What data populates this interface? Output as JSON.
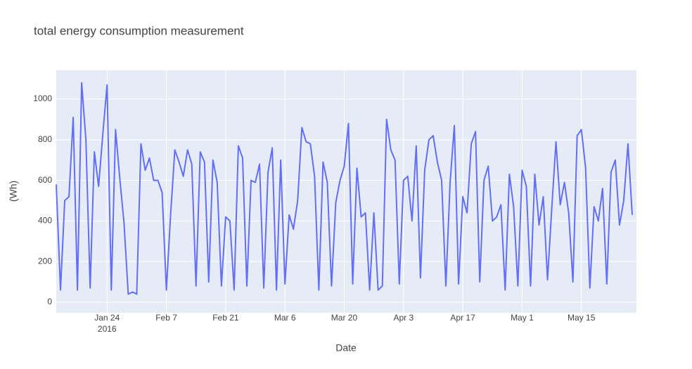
{
  "chart_data": {
    "type": "line",
    "title": "total energy consumption measurement",
    "xlabel": "Date",
    "ylabel": "(Wh)",
    "x_year_label": "2016",
    "x": [
      "2016-01-12",
      "2016-01-13",
      "2016-01-14",
      "2016-01-15",
      "2016-01-16",
      "2016-01-17",
      "2016-01-18",
      "2016-01-19",
      "2016-01-20",
      "2016-01-21",
      "2016-01-22",
      "2016-01-23",
      "2016-01-24",
      "2016-01-25",
      "2016-01-26",
      "2016-01-27",
      "2016-01-28",
      "2016-01-29",
      "2016-01-30",
      "2016-01-31",
      "2016-02-01",
      "2016-02-02",
      "2016-02-03",
      "2016-02-04",
      "2016-02-05",
      "2016-02-06",
      "2016-02-07",
      "2016-02-08",
      "2016-02-09",
      "2016-02-10",
      "2016-02-11",
      "2016-02-12",
      "2016-02-13",
      "2016-02-14",
      "2016-02-15",
      "2016-02-16",
      "2016-02-17",
      "2016-02-18",
      "2016-02-19",
      "2016-02-20",
      "2016-02-21",
      "2016-02-22",
      "2016-02-23",
      "2016-02-24",
      "2016-02-25",
      "2016-02-26",
      "2016-02-27",
      "2016-02-28",
      "2016-02-29",
      "2016-03-01",
      "2016-03-02",
      "2016-03-03",
      "2016-03-04",
      "2016-03-05",
      "2016-03-06",
      "2016-03-07",
      "2016-03-08",
      "2016-03-09",
      "2016-03-10",
      "2016-03-11",
      "2016-03-12",
      "2016-03-13",
      "2016-03-14",
      "2016-03-15",
      "2016-03-16",
      "2016-03-17",
      "2016-03-18",
      "2016-03-19",
      "2016-03-20",
      "2016-03-21",
      "2016-03-22",
      "2016-03-23",
      "2016-03-24",
      "2016-03-25",
      "2016-03-26",
      "2016-03-27",
      "2016-03-28",
      "2016-03-29",
      "2016-03-30",
      "2016-03-31",
      "2016-04-01",
      "2016-04-02",
      "2016-04-03",
      "2016-04-04",
      "2016-04-05",
      "2016-04-06",
      "2016-04-07",
      "2016-04-08",
      "2016-04-09",
      "2016-04-10",
      "2016-04-11",
      "2016-04-12",
      "2016-04-13",
      "2016-04-14",
      "2016-04-15",
      "2016-04-16",
      "2016-04-17",
      "2016-04-18",
      "2016-04-19",
      "2016-04-20",
      "2016-04-21",
      "2016-04-22",
      "2016-04-23",
      "2016-04-24",
      "2016-04-25",
      "2016-04-26",
      "2016-04-27",
      "2016-04-28",
      "2016-04-29",
      "2016-04-30",
      "2016-05-01",
      "2016-05-02",
      "2016-05-03",
      "2016-05-04",
      "2016-05-05",
      "2016-05-06",
      "2016-05-07",
      "2016-05-08",
      "2016-05-09",
      "2016-05-10",
      "2016-05-11",
      "2016-05-12",
      "2016-05-13",
      "2016-05-14",
      "2016-05-15",
      "2016-05-16",
      "2016-05-17",
      "2016-05-18",
      "2016-05-19",
      "2016-05-20",
      "2016-05-21",
      "2016-05-22",
      "2016-05-23",
      "2016-05-24",
      "2016-05-25",
      "2016-05-26",
      "2016-05-27"
    ],
    "series": [
      {
        "name": "total energy",
        "color": "#636efa",
        "values": [
          580,
          60,
          500,
          520,
          910,
          60,
          1080,
          800,
          70,
          740,
          570,
          830,
          1070,
          60,
          850,
          610,
          390,
          40,
          50,
          40,
          780,
          650,
          710,
          600,
          600,
          540,
          60,
          430,
          750,
          690,
          620,
          750,
          680,
          80,
          740,
          690,
          100,
          700,
          590,
          80,
          420,
          400,
          60,
          770,
          710,
          80,
          600,
          590,
          680,
          70,
          640,
          760,
          60,
          700,
          90,
          430,
          360,
          500,
          860,
          790,
          780,
          620,
          60,
          690,
          590,
          80,
          490,
          600,
          670,
          880,
          90,
          660,
          420,
          440,
          60,
          440,
          60,
          80,
          900,
          750,
          700,
          90,
          600,
          620,
          400,
          770,
          120,
          650,
          800,
          820,
          690,
          600,
          80,
          590,
          870,
          90,
          520,
          440,
          780,
          840,
          100,
          600,
          670,
          400,
          420,
          480,
          60,
          630,
          470,
          80,
          650,
          570,
          80,
          630,
          380,
          520,
          110,
          460,
          790,
          480,
          590,
          440,
          100,
          820,
          850,
          660,
          70,
          470,
          400,
          560,
          90,
          640,
          700,
          380,
          500,
          780,
          430
        ]
      }
    ],
    "xlim": [
      "2016-01-12",
      "2016-05-28"
    ],
    "xticks": [
      {
        "value": "2016-01-24",
        "label": "Jan 24"
      },
      {
        "value": "2016-02-07",
        "label": "Feb 7"
      },
      {
        "value": "2016-02-21",
        "label": "Feb 21"
      },
      {
        "value": "2016-03-06",
        "label": "Mar 6"
      },
      {
        "value": "2016-03-20",
        "label": "Mar 20"
      },
      {
        "value": "2016-04-03",
        "label": "Apr 3"
      },
      {
        "value": "2016-04-17",
        "label": "Apr 17"
      },
      {
        "value": "2016-05-01",
        "label": "May 1"
      },
      {
        "value": "2016-05-15",
        "label": "May 15"
      }
    ],
    "ylim": [
      -52,
      1142
    ],
    "yticks": [
      0,
      200,
      400,
      600,
      800,
      1000
    ],
    "grid": true
  }
}
